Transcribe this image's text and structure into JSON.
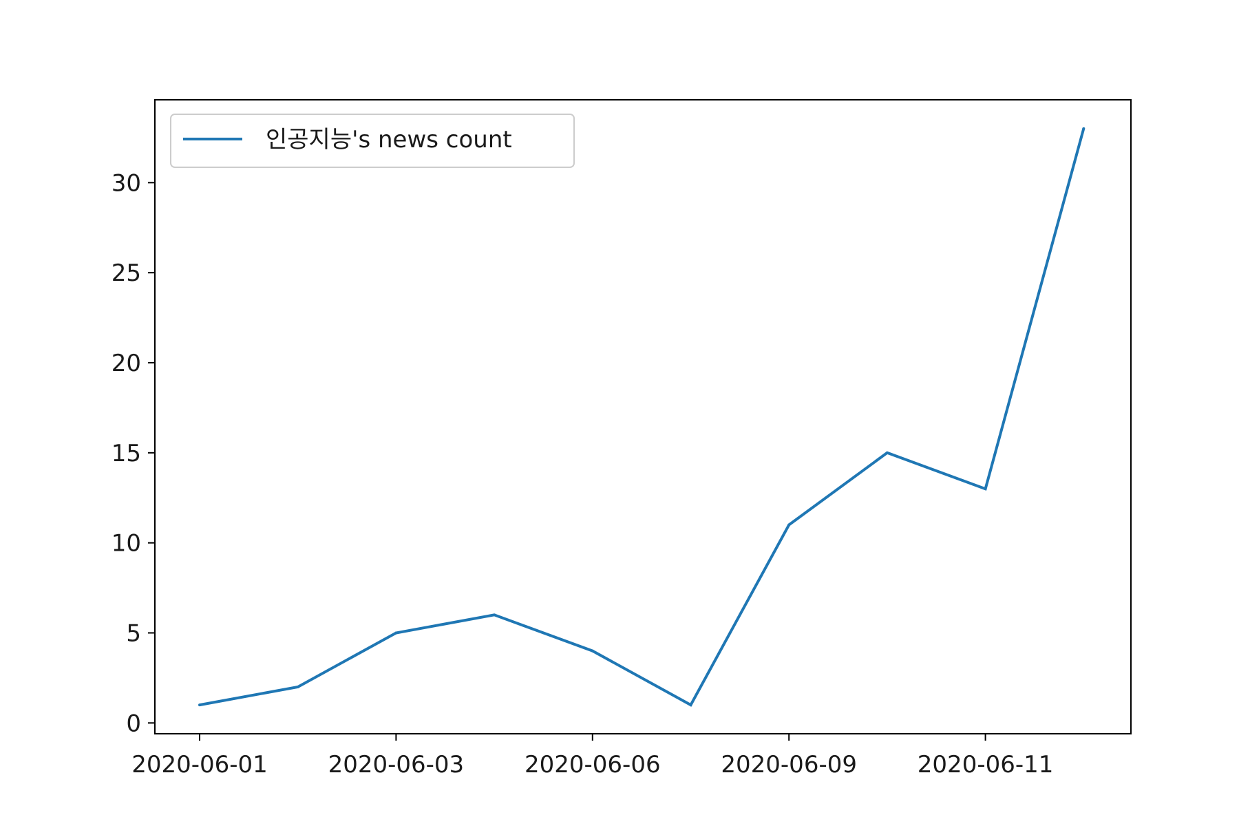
{
  "chart_data": {
    "type": "line",
    "x_labels": [
      "2020-06-01",
      "",
      "2020-06-03",
      "",
      "2020-06-06",
      "",
      "2020-06-09",
      "",
      "2020-06-11",
      ""
    ],
    "x_ticks": [
      "2020-06-01",
      "2020-06-03",
      "2020-06-06",
      "2020-06-09",
      "2020-06-11"
    ],
    "series": [
      {
        "name": "인공지능's news count",
        "values": [
          1,
          2,
          5,
          6,
          4,
          1,
          11,
          15,
          13,
          33
        ]
      }
    ],
    "ylim": [
      -0.6,
      34.6
    ],
    "yticks": [
      0,
      5,
      10,
      15,
      20,
      25,
      30
    ],
    "colors": {
      "series": "#1f77b4",
      "axes": "#000000"
    },
    "legend_position": "upper-left",
    "grid": false
  }
}
